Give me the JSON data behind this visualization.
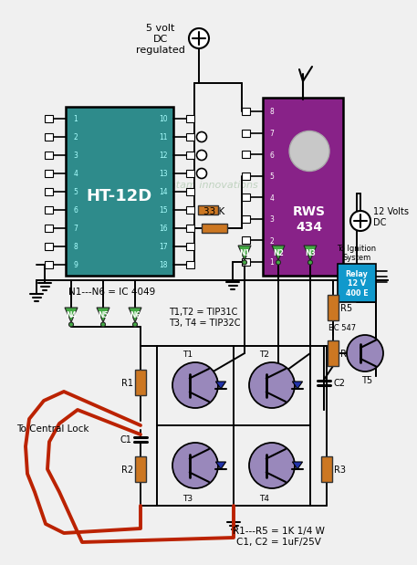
{
  "bg_color": "#f0f0f0",
  "watermark": "swagatam innovations",
  "ht12d_color": "#2E8B8B",
  "ht12d_label": "HT-12D",
  "ht12d_pin_color": "#aaffff",
  "rws434_color": "#882288",
  "rws434_label": "RWS\n434",
  "relay_color": "#1199cc",
  "relay_label": "Relay\n12 V\n400 E",
  "resistor_color": "#CC7722",
  "wire_color": "#111111",
  "redwire_color": "#bb2200",
  "inv_color": "#44aa44",
  "annotations": {
    "5v_label": "5 volt\nDC\nregulated",
    "12v_label": "12 Volts\nDC",
    "n16_label": "N1---N6 = IC 4049",
    "t12_label": "T1,T2 = TIP31C\nT3, T4 = TIP32C",
    "r15_label": "R1---R5 = 1K 1/4 W\nC1, C2 = 1uF/25V",
    "33k_label": "33 K",
    "ignition_label": "To Ignition\nSystem",
    "central_lock_label": "To Central Lock",
    "bc547_label": "BC 547",
    "t5_label": "T5"
  }
}
